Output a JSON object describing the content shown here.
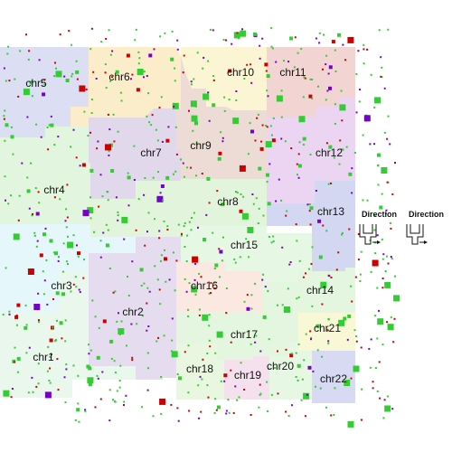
{
  "chromosome_map": {
    "regions": [
      {
        "name": "chr1",
        "color": "#e9f7ec"
      },
      {
        "name": "chr2",
        "color": "#e5dcef"
      },
      {
        "name": "chr3",
        "color": "#e6f7fb"
      },
      {
        "name": "chr4",
        "color": "#e2f6df"
      },
      {
        "name": "chr5",
        "color": "#dcdff3"
      },
      {
        "name": "chr6",
        "color": "#fbedc9"
      },
      {
        "name": "chr7",
        "color": "#e2d8ec"
      },
      {
        "name": "chr8",
        "color": "#e3f4dd"
      },
      {
        "name": "chr9",
        "color": "#eddcd5"
      },
      {
        "name": "chr10",
        "color": "#fbf5d4"
      },
      {
        "name": "chr11",
        "color": "#f2d5d3"
      },
      {
        "name": "chr12",
        "color": "#ecd5f3"
      },
      {
        "name": "chr13",
        "color": "#d3d7f2"
      },
      {
        "name": "chr14",
        "color": "#e4f6df"
      },
      {
        "name": "chr15",
        "color": "#e6f7e3"
      },
      {
        "name": "chr16",
        "color": "#fbe9e1"
      },
      {
        "name": "chr17",
        "color": "#e4f6df"
      },
      {
        "name": "chr18",
        "color": "#e9f7e1"
      },
      {
        "name": "chr19",
        "color": "#f5e0ee"
      },
      {
        "name": "chr20",
        "color": "#e6f7e3"
      },
      {
        "name": "chr21",
        "color": "#f9f8d6"
      },
      {
        "name": "chr22",
        "color": "#d8daf3"
      }
    ],
    "marker_colors": [
      "#33cc33",
      "#cc0000",
      "#7700cc"
    ],
    "legend": {
      "items": [
        {
          "label": "Direction",
          "glyph": "direction-glyph-a"
        },
        {
          "label": "Direction",
          "glyph": "direction-glyph-b"
        }
      ]
    }
  }
}
